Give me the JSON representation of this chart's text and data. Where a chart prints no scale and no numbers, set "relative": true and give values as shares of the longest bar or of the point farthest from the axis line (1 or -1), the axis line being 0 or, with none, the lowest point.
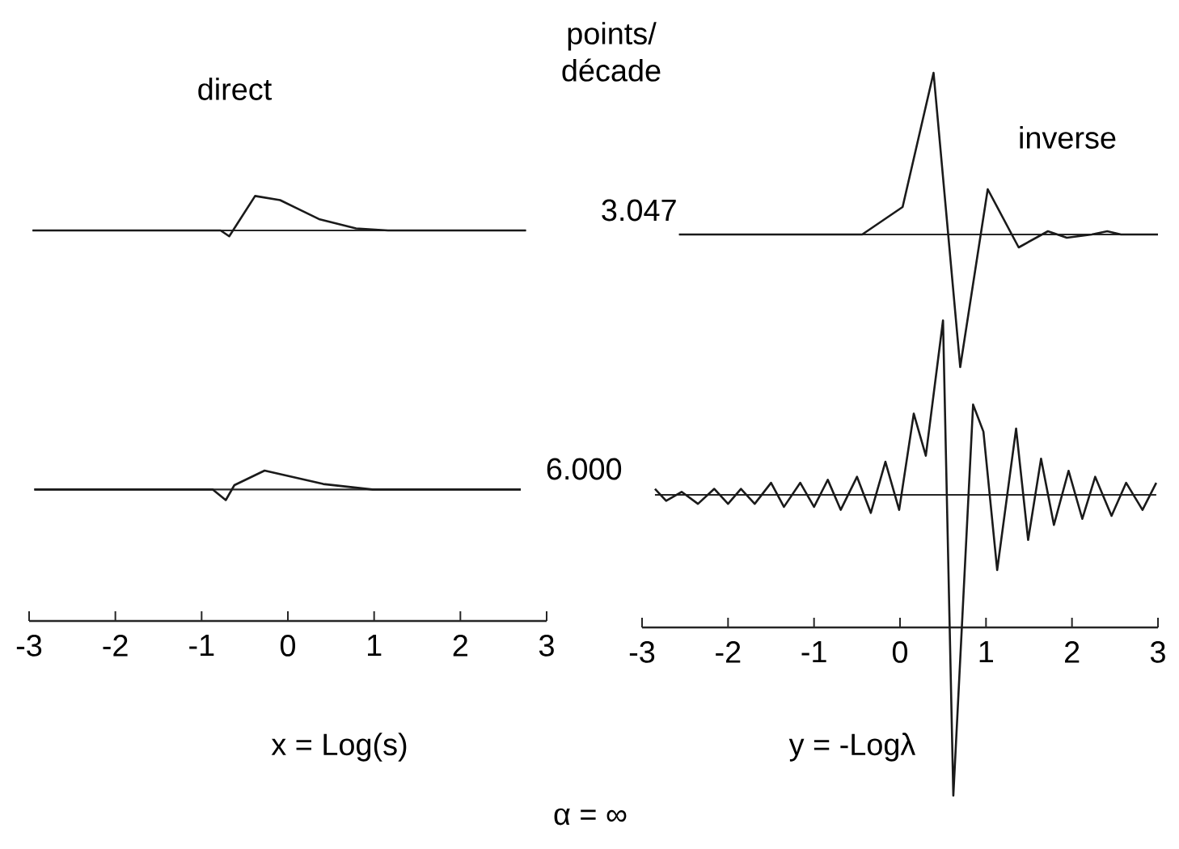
{
  "chart_data": [
    {
      "type": "line",
      "title": "direct",
      "relative": true,
      "xlim": [
        -3,
        3
      ],
      "tick_labels": false,
      "series": [
        {
          "color": "#1a1a1a",
          "x": [
            -2.96,
            -0.78,
            -0.68,
            -0.38,
            -0.09,
            0.36,
            0.79,
            1.16,
            2.76
          ],
          "values": [
            0,
            0,
            -0.17,
            1,
            0.88,
            0.33,
            0.06,
            0,
            0
          ]
        }
      ]
    },
    {
      "type": "line",
      "xlabel": "x = Log(s)",
      "relative": true,
      "xlim": [
        -3,
        3
      ],
      "xticks": [
        -3,
        -2,
        -1,
        0,
        1,
        2,
        3
      ],
      "tick_labels": "x",
      "series": [
        {
          "color": "#1a1a1a",
          "x": [
            -2.94,
            -0.87,
            -0.72,
            -0.62,
            -0.27,
            0.41,
            0.98,
            2.7
          ],
          "values": [
            0,
            0,
            -0.56,
            0.23,
            1,
            0.29,
            0,
            0
          ]
        }
      ]
    },
    {
      "type": "line",
      "title": "inverse",
      "annotations": [
        "points/ décade",
        "3.047"
      ],
      "relative": true,
      "xlim": [
        -3,
        3
      ],
      "tick_labels": false,
      "series": [
        {
          "color": "#1a1a1a",
          "x": [
            -2.57,
            -0.44,
            0.03,
            0.39,
            0.7,
            1.02,
            1.38,
            1.72,
            1.94,
            2.23,
            2.41,
            2.57,
            3.0
          ],
          "values": [
            0,
            0,
            0.17,
            1,
            -0.82,
            0.28,
            -0.08,
            0.02,
            -0.02,
            0,
            0.02,
            0,
            0
          ]
        }
      ]
    },
    {
      "type": "line",
      "xlabel": "y = -Logλ",
      "annotations": [
        "6.000",
        "α = ∞"
      ],
      "relative": true,
      "xlim": [
        -3,
        3
      ],
      "xticks": [
        -3,
        -2,
        -1,
        0,
        1,
        2,
        3
      ],
      "tick_labels": "x",
      "series": [
        {
          "color": "#1a1a1a",
          "x": [
            -2.85,
            -2.72,
            -2.54,
            -2.35,
            -2.16,
            -2.0,
            -1.85,
            -1.69,
            -1.5,
            -1.35,
            -1.16,
            -1.0,
            -0.84,
            -0.69,
            -0.5,
            -0.34,
            -0.17,
            -0.01,
            0.16,
            0.3,
            0.5,
            0.62,
            0.85,
            0.97,
            1.13,
            1.35,
            1.49,
            1.64,
            1.79,
            1.96,
            2.12,
            2.27,
            2.46,
            2.63,
            2.82,
            2.98
          ],
          "values": [
            0.02,
            -0.02,
            0.01,
            -0.03,
            0.02,
            -0.03,
            0.02,
            -0.03,
            0.04,
            -0.04,
            0.04,
            -0.04,
            0.05,
            -0.05,
            0.06,
            -0.06,
            0.11,
            -0.05,
            0.27,
            0.13,
            0.58,
            -1,
            0.3,
            0.21,
            -0.25,
            0.22,
            -0.15,
            0.12,
            -0.1,
            0.08,
            -0.08,
            0.06,
            -0.07,
            0.04,
            -0.05,
            0.04
          ]
        }
      ]
    }
  ]
}
